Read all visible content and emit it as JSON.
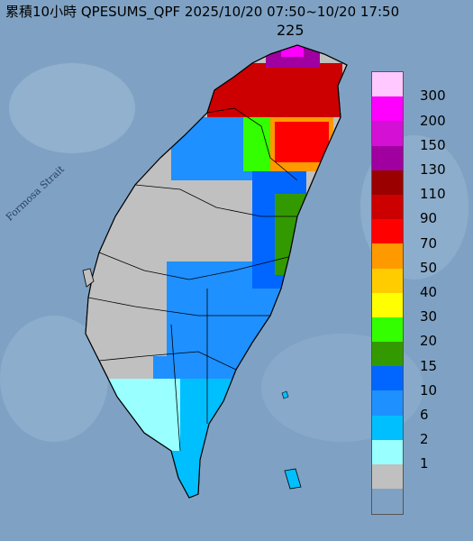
{
  "title": "累積10小時 QPESUMS_QPF 2025/10/20 07:50~10/20 17:50",
  "max_value": "225",
  "strait_label": "Formosa Strait",
  "legend": {
    "labels": [
      "300",
      "200",
      "150",
      "130",
      "110",
      "90",
      "70",
      "50",
      "40",
      "30",
      "20",
      "15",
      "10",
      "6",
      "2",
      "1"
    ],
    "colors": [
      "#ffc8ff",
      "#ff00ff",
      "#d410d4",
      "#a000a0",
      "#9a0000",
      "#cc0000",
      "#ff0000",
      "#ff9900",
      "#ffcc00",
      "#ffff00",
      "#33ff00",
      "#339900",
      "#0066ff",
      "#1e90ff",
      "#00bfff",
      "#99ffff",
      "#c0c0c0"
    ]
  },
  "colors": {
    "sea": "#7fa2c4",
    "land_gray": "#c0c0c0"
  }
}
